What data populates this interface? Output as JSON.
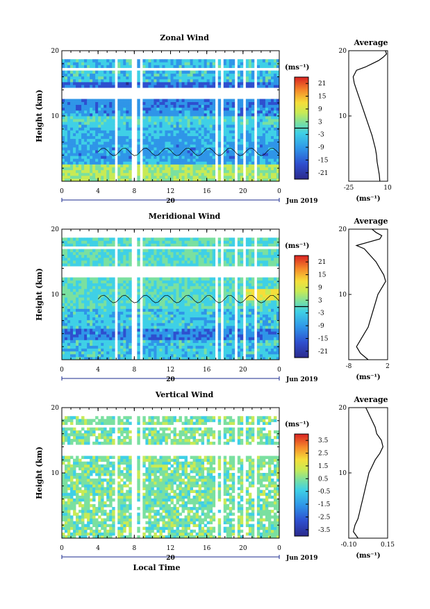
{
  "chart_data": [
    {
      "type": "heatmap",
      "title": "Zonal Wind",
      "ylabel": "Height (km)",
      "xlim": [
        0,
        24
      ],
      "ylim": [
        0,
        20
      ],
      "x_ticks": [
        "0",
        "4",
        "8",
        "12",
        "16",
        "20",
        "0"
      ],
      "y_ticks": [
        "20",
        "10"
      ],
      "date_label": "20",
      "month_label": "Jun 2019",
      "colorbar": {
        "unit": "(ms⁻¹)",
        "ticks": [
          "21",
          "15",
          "9",
          "3",
          "-3",
          "-9",
          "-15",
          "-21"
        ],
        "range": [
          -24,
          24
        ]
      },
      "average_panel": {
        "title": "Average",
        "xlabel": "(ms⁻¹)",
        "x_ticks": [
          "-25",
          "10"
        ],
        "xlim": [
          -25,
          10
        ],
        "profile": [
          [
            0,
            3
          ],
          [
            1,
            2.5
          ],
          [
            2,
            1.5
          ],
          [
            3,
            0.5
          ],
          [
            4,
            0
          ],
          [
            5,
            -1
          ],
          [
            6,
            -2.5
          ],
          [
            7,
            -4
          ],
          [
            8,
            -6
          ],
          [
            9,
            -8
          ],
          [
            10,
            -10
          ],
          [
            11,
            -12
          ],
          [
            12,
            -14
          ],
          [
            13,
            -16
          ],
          [
            14,
            -18
          ],
          [
            15,
            -20
          ],
          [
            16,
            -21
          ],
          [
            17,
            -18
          ],
          [
            17.5,
            -10
          ],
          [
            18,
            -4
          ],
          [
            18.5,
            2
          ],
          [
            19,
            6
          ],
          [
            19.5,
            9
          ],
          [
            20,
            8
          ]
        ]
      }
    },
    {
      "type": "heatmap",
      "title": "Meridional Wind",
      "ylabel": "Height (km)",
      "xlim": [
        0,
        24
      ],
      "ylim": [
        0,
        20
      ],
      "x_ticks": [
        "0",
        "4",
        "8",
        "12",
        "16",
        "20",
        "0"
      ],
      "y_ticks": [
        "20",
        "10"
      ],
      "date_label": "20",
      "month_label": "Jun 2019",
      "colorbar": {
        "unit": "(ms⁻¹)",
        "ticks": [
          "21",
          "15",
          "9",
          "3",
          "-3",
          "-9",
          "-15",
          "-21"
        ],
        "range": [
          -24,
          24
        ]
      },
      "average_panel": {
        "title": "Average",
        "xlabel": "(ms⁻¹)",
        "x_ticks": [
          "-8",
          "2"
        ],
        "xlim": [
          -8,
          2
        ],
        "profile": [
          [
            0,
            -3
          ],
          [
            1,
            -5
          ],
          [
            2,
            -6
          ],
          [
            3,
            -5
          ],
          [
            4,
            -4
          ],
          [
            5,
            -3
          ],
          [
            6,
            -2.5
          ],
          [
            7,
            -2
          ],
          [
            8,
            -1.5
          ],
          [
            9,
            -1
          ],
          [
            10,
            -0.5
          ],
          [
            11,
            0.5
          ],
          [
            12,
            1.5
          ],
          [
            13,
            1
          ],
          [
            14,
            0
          ],
          [
            15,
            -1
          ],
          [
            16,
            -2.5
          ],
          [
            17,
            -4
          ],
          [
            17.5,
            -6
          ],
          [
            18,
            -3
          ],
          [
            18.5,
            0
          ],
          [
            19,
            0.5
          ],
          [
            19.5,
            -1
          ],
          [
            20,
            -2
          ]
        ]
      }
    },
    {
      "type": "heatmap",
      "title": "Vertical Wind",
      "ylabel": "Height (km)",
      "xlabel": "Local Time",
      "xlim": [
        0,
        24
      ],
      "ylim": [
        0,
        20
      ],
      "x_ticks": [
        "0",
        "4",
        "8",
        "12",
        "16",
        "20",
        "0"
      ],
      "y_ticks": [
        "20",
        "10"
      ],
      "date_label": "20",
      "month_label": "Jun 2019",
      "colorbar": {
        "unit": "(ms⁻¹)",
        "ticks": [
          "3.5",
          "2.5",
          "1.5",
          "0.5",
          "-0.5",
          "-1.5",
          "-2.5",
          "-3.5"
        ],
        "range": [
          -4,
          4
        ]
      },
      "average_panel": {
        "title": "Average",
        "xlabel": "(ms⁻¹)",
        "x_ticks": [
          "-0.10",
          "0.15"
        ],
        "xlim": [
          -0.1,
          0.15
        ],
        "profile": [
          [
            0,
            -0.04
          ],
          [
            1,
            -0.07
          ],
          [
            2,
            -0.06
          ],
          [
            3,
            -0.04
          ],
          [
            4,
            -0.03
          ],
          [
            5,
            -0.02
          ],
          [
            6,
            -0.01
          ],
          [
            7,
            0.0
          ],
          [
            8,
            0.01
          ],
          [
            9,
            0.02
          ],
          [
            10,
            0.03
          ],
          [
            11,
            0.05
          ],
          [
            12,
            0.07
          ],
          [
            13,
            0.1
          ],
          [
            14,
            0.12
          ],
          [
            15,
            0.11
          ],
          [
            16,
            0.08
          ],
          [
            17,
            0.07
          ],
          [
            18,
            0.05
          ],
          [
            19,
            0.03
          ],
          [
            20,
            0.01
          ]
        ]
      }
    }
  ]
}
